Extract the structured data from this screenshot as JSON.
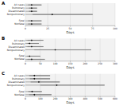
{
  "chart_data": [
    {
      "type": "range",
      "title": "A",
      "orientation": "horizontal",
      "grid": true,
      "color": "#888888",
      "categories": [
        "All cases",
        "Pulmonary",
        "Disseminated",
        "Nonpulmonary",
        null,
        "Fatal",
        "Nonfatal"
      ],
      "values": [
        7,
        7,
        7,
        30,
        null,
        7,
        7
      ],
      "q1": [
        3,
        4,
        4,
        8,
        null,
        3,
        3
      ],
      "q3": [
        18,
        13,
        13,
        75,
        null,
        18,
        18
      ],
      "xlim": [
        0,
        100
      ],
      "xticks": [
        0,
        25,
        50,
        75,
        100
      ],
      "xlabel": "Days"
    },
    {
      "type": "range",
      "title": "B",
      "orientation": "horizontal",
      "grid": true,
      "color": "#888888",
      "categories": [
        "All cases",
        "Pulmonary",
        "Disseminated",
        "Nonpulmonary",
        null,
        "Fatal",
        "Nonfatal"
      ],
      "values": [
        21,
        14,
        21,
        100,
        null,
        14,
        21
      ],
      "q1": [
        7,
        7,
        7,
        30,
        null,
        6,
        7
      ],
      "q3": [
        60,
        45,
        60,
        220,
        null,
        50,
        65
      ],
      "xlim": [
        0,
        300
      ],
      "xticks": [
        0,
        50,
        100,
        150,
        200,
        250,
        300
      ],
      "xlabel": "Days"
    },
    {
      "type": "range",
      "title": "C",
      "orientation": "horizontal",
      "grid": true,
      "color": "#888888",
      "categories": [
        "All cases",
        "Pulmonary",
        "Disseminated",
        "Nonpulmonary",
        null,
        "Fatal",
        "Nonfatal"
      ],
      "values": [
        60,
        60,
        90,
        210,
        null,
        45,
        60
      ],
      "q1": [
        25,
        30,
        35,
        100,
        null,
        20,
        25
      ],
      "q3": [
        165,
        165,
        230,
        530,
        null,
        110,
        175
      ],
      "xlim": [
        0,
        600
      ],
      "xticks": [
        0,
        100,
        200,
        300,
        400,
        500,
        600
      ],
      "xlabel": "Days"
    }
  ]
}
